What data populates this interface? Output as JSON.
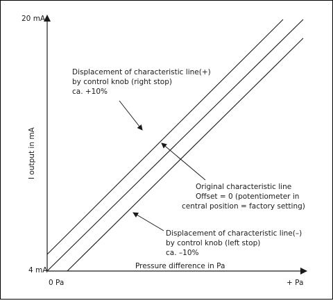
{
  "diagram": {
    "axes": {
      "y_top_label": "20 mA",
      "y_bottom_label": "4 mA",
      "y_title": "I output in mA",
      "x_left_label": "0 Pa",
      "x_right_label": "+ Pa",
      "x_title": "Pressure difference in Pa"
    },
    "annotations": {
      "plus": {
        "lines": [
          "Displacement of characteristic line(+)",
          "by control knob (right stop)",
          "ca. +10%"
        ]
      },
      "original": {
        "lines": [
          "Original characteristic line",
          "Offset = 0 (potentiometer in",
          "central position = factory setting)"
        ]
      },
      "minus": {
        "lines": [
          "Displacement of characteristic line(–)",
          "by control knob (left stop)",
          "ca. –10%"
        ]
      }
    },
    "lines": [
      "plus",
      "original",
      "minus"
    ],
    "colors": {
      "ink": "#1a1a1a",
      "frame": "#000000",
      "background": "#ffffff"
    }
  }
}
